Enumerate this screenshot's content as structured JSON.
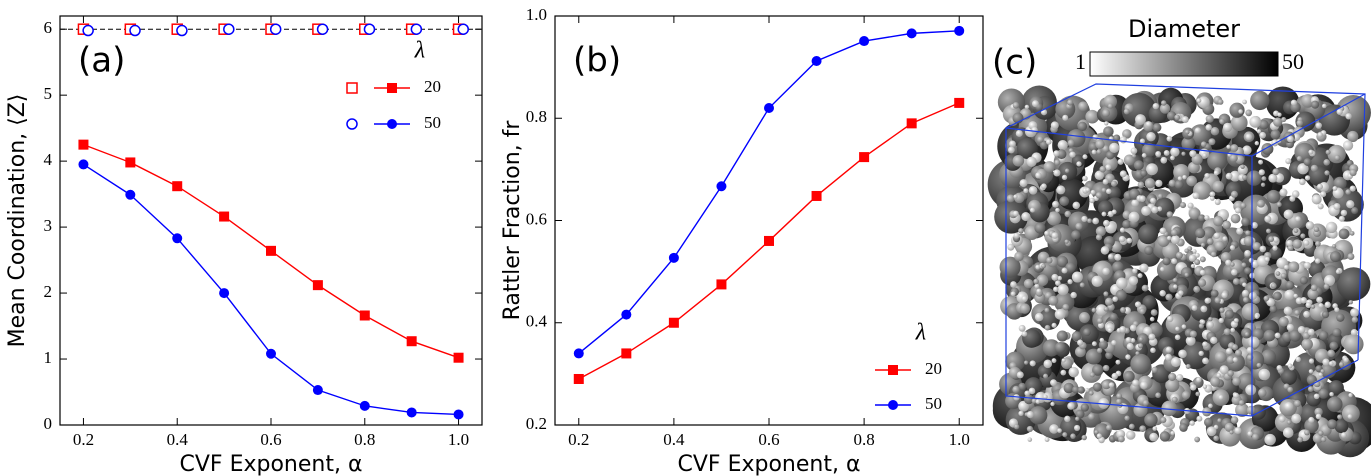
{
  "chart_data": [
    {
      "type": "line",
      "panel_label": "(a)",
      "xlabel": "CVF Exponent, α",
      "ylabel": "Mean Coordination, ⟨Z⟩",
      "xlim": [
        0.15,
        1.05
      ],
      "ylim": [
        0,
        6.2
      ],
      "xticks": [
        0.2,
        0.4,
        0.6,
        0.8,
        {
          "value": 1,
          "label": "1.0"
        }
      ],
      "yticks": [
        0,
        1,
        2,
        3,
        4,
        5,
        6
      ],
      "reference_line": 6,
      "legend_title": "λ",
      "legend": "upper right",
      "x": [
        0.2,
        0.3,
        0.4,
        0.5,
        0.6,
        0.7,
        0.8,
        0.9,
        1.0
      ],
      "series": [
        {
          "name": "20",
          "color": "#ff0000",
          "marker": "square",
          "values": [
            4.25,
            3.98,
            3.62,
            3.16,
            2.64,
            2.12,
            1.66,
            1.27,
            1.02
          ],
          "open_x": [
            0.2,
            0.3,
            0.4,
            0.5,
            0.6,
            0.7,
            0.8,
            0.9,
            1.0
          ],
          "open_values": [
            6,
            6,
            6,
            6,
            6,
            6,
            6,
            6,
            6
          ]
        },
        {
          "name": "50",
          "color": "#0000ff",
          "marker": "circle",
          "values": [
            3.95,
            3.49,
            2.83,
            2.0,
            1.08,
            0.53,
            0.29,
            0.19,
            0.16
          ],
          "open_x": [
            0.21,
            0.31,
            0.41,
            0.51,
            0.61,
            0.71,
            0.81,
            0.91,
            1.01
          ],
          "open_values": [
            5.98,
            5.98,
            5.98,
            6,
            6,
            6,
            6,
            6,
            6
          ]
        }
      ]
    },
    {
      "type": "line",
      "panel_label": "(b)",
      "xlabel": "CVF Exponent, α",
      "ylabel": "Rattler Fraction, fr",
      "xlim": [
        0.15,
        1.05
      ],
      "ylim": [
        0.2,
        1.0
      ],
      "xticks": [
        0.2,
        0.4,
        0.6,
        0.8,
        {
          "value": 1,
          "label": "1.0"
        }
      ],
      "yticks": [
        0.2,
        0.4,
        0.6,
        0.8,
        {
          "value": 1,
          "label": "1.0"
        }
      ],
      "legend_title": "λ",
      "legend": "lower right",
      "x": [
        0.2,
        0.3,
        0.4,
        0.5,
        0.6,
        0.7,
        0.8,
        0.9,
        1.0
      ],
      "series": [
        {
          "name": "20",
          "color": "#ff0000",
          "marker": "square",
          "values": [
            0.29,
            0.34,
            0.4,
            0.475,
            0.56,
            0.648,
            0.724,
            0.79,
            0.83
          ]
        },
        {
          "name": "50",
          "color": "#0000ff",
          "marker": "circle",
          "values": [
            0.34,
            0.416,
            0.527,
            0.667,
            0.82,
            0.912,
            0.951,
            0.966,
            0.971
          ]
        }
      ]
    },
    {
      "type": "image",
      "panel_label": "(c)",
      "colorbar": {
        "title": "Diameter",
        "clim": [
          1,
          50
        ],
        "ticks": [
          1,
          50
        ]
      }
    }
  ]
}
